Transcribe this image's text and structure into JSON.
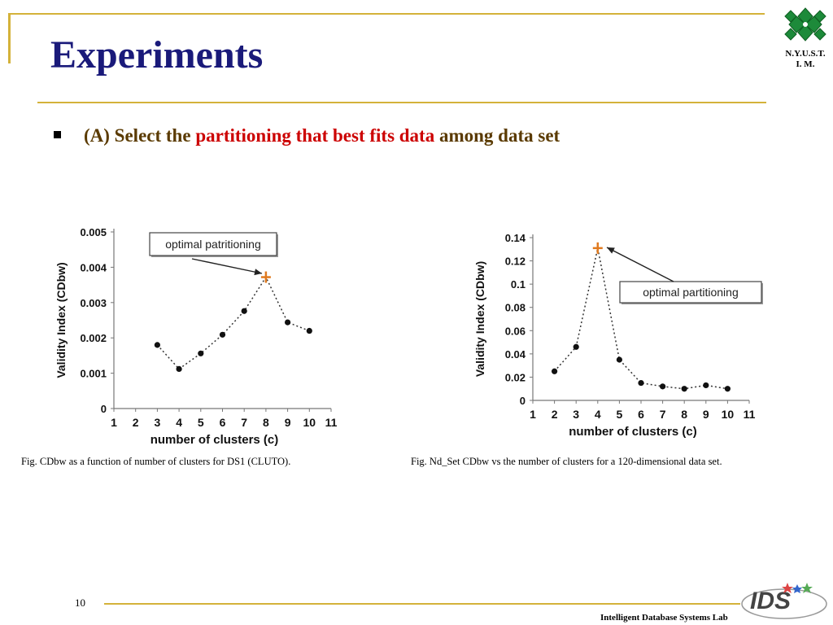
{
  "slide": {
    "title": "Experiments",
    "bullet": {
      "part1": "(A) Select the ",
      "highlight": "partitioning that best fits data",
      "part2": " among data set"
    },
    "logo_text_line1": "N.Y.U.S.T.",
    "logo_text_line2": "I. M.",
    "page_number": "10",
    "footer": "Intelligent Database Systems Lab",
    "footer_logo_text": "IDS",
    "colors": {
      "title": "#1a1a7a",
      "bullet_text": "#5a3a00",
      "highlight": "#cc0000",
      "rule": "#d4b23a",
      "optimal_marker": "#e07a1f"
    }
  },
  "chart_data": [
    {
      "type": "scatter",
      "caption": "Fig. CDbw as a function of number of clusters for DS1 (CLUTO).",
      "xlabel": "number of clusters (c)",
      "ylabel": "Validity Index (CDbw)",
      "xlim": [
        1,
        11
      ],
      "ylim": [
        0,
        0.005
      ],
      "x_ticks": [
        "1",
        "2",
        "3",
        "4",
        "5",
        "6",
        "7",
        "8",
        "9",
        "10",
        "11"
      ],
      "y_ticks": [
        "0",
        "0.001",
        "0.002",
        "0.003",
        "0.004",
        "0.005"
      ],
      "series": [
        {
          "x": [
            3,
            4,
            5,
            6,
            7,
            8,
            9,
            10
          ],
          "y": [
            0.0018,
            0.00112,
            0.00156,
            0.00209,
            0.00276,
            0.00372,
            0.00244,
            0.0022
          ]
        }
      ],
      "optimal": {
        "x": 8,
        "y": 0.00372
      },
      "annotation": "optimal patritioning",
      "grid": false
    },
    {
      "type": "scatter",
      "caption": "Fig. Nd_Set CDbw vs the number of clusters for a 120-dimensional data set.",
      "xlabel": "number of clusters (c)",
      "ylabel": "Validity  Index (CDbw)",
      "xlim": [
        1,
        11
      ],
      "ylim": [
        0,
        0.14
      ],
      "x_ticks": [
        "1",
        "2",
        "3",
        "4",
        "5",
        "6",
        "7",
        "8",
        "9",
        "10",
        "11"
      ],
      "y_ticks": [
        "0",
        "0.02",
        "0.04",
        "0.06",
        "0.08",
        "0.1",
        "0.12",
        "0.14"
      ],
      "series": [
        {
          "x": [
            2,
            3,
            4,
            5,
            6,
            7,
            8,
            9,
            10
          ],
          "y": [
            0.025,
            0.046,
            0.131,
            0.035,
            0.015,
            0.012,
            0.01,
            0.013,
            0.01
          ]
        }
      ],
      "optimal": {
        "x": 4,
        "y": 0.131
      },
      "annotation": "optimal partitioning",
      "grid": false
    }
  ]
}
